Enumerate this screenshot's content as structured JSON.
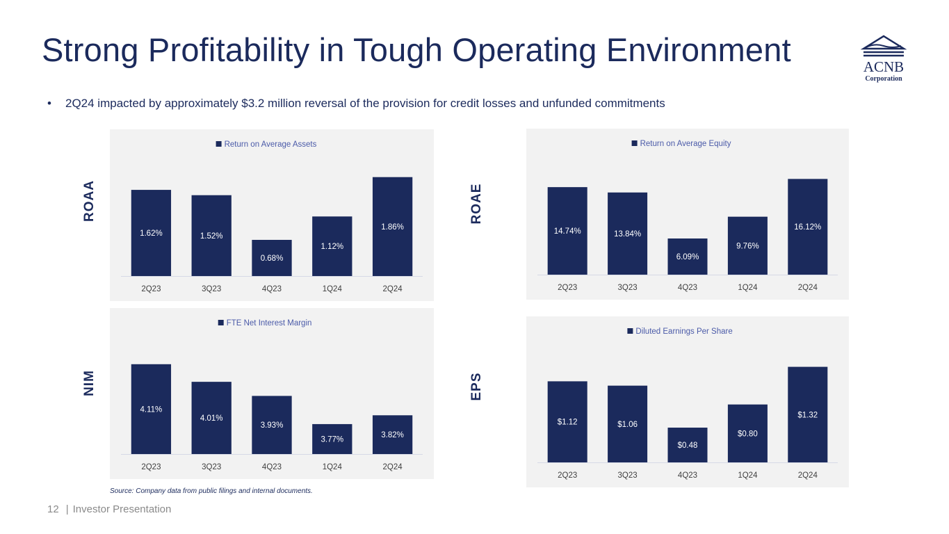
{
  "slide": {
    "title": "Strong Profitability in Tough Operating Environment",
    "bullet": "2Q24 impacted by approximately $3.2 million reversal of the provision for credit losses and unfunded commitments",
    "bullet_marker": "•",
    "source": "Source: Company data from public filings and internal documents.",
    "footer_page": "12",
    "footer_sep": "|",
    "footer_text": "Investor Presentation",
    "logo": {
      "name": "ACNB",
      "sub": "Corporation",
      "icon": "bank-roof-icon"
    },
    "colors": {
      "bar": "#1b2a5c",
      "legend_text": "#4a5aa8",
      "panel_bg": "#f2f2f2",
      "axis_text": "#404040"
    }
  },
  "chart_data": [
    {
      "id": "roaa",
      "type": "bar",
      "side_label": "ROAA",
      "title": "",
      "legend": [
        "Return on Average Assets"
      ],
      "legend_position": "top-center",
      "categories": [
        "2Q23",
        "3Q23",
        "4Q23",
        "1Q24",
        "2Q24"
      ],
      "values": [
        1.62,
        1.52,
        0.68,
        1.12,
        1.86
      ],
      "labels": [
        "1.62%",
        "1.52%",
        "0.68%",
        "1.12%",
        "1.86%"
      ],
      "xlabel": "",
      "ylabel": "",
      "ylim": [
        0,
        2.0
      ],
      "grid": false
    },
    {
      "id": "roae",
      "type": "bar",
      "side_label": "ROAE",
      "title": "",
      "legend": [
        "Return on Average Equity"
      ],
      "legend_position": "top-center",
      "categories": [
        "2Q23",
        "3Q23",
        "4Q23",
        "1Q24",
        "2Q24"
      ],
      "values": [
        14.74,
        13.84,
        6.09,
        9.76,
        16.12
      ],
      "labels": [
        "14.74%",
        "13.84%",
        "6.09%",
        "9.76%",
        "16.12%"
      ],
      "xlabel": "",
      "ylabel": "",
      "ylim": [
        0,
        17.8
      ],
      "grid": false
    },
    {
      "id": "nim",
      "type": "bar",
      "side_label": "NIM",
      "title": "",
      "legend": [
        "FTE Net Interest Margin"
      ],
      "legend_position": "top-center",
      "categories": [
        "2Q23",
        "3Q23",
        "4Q23",
        "1Q24",
        "2Q24"
      ],
      "values": [
        4.11,
        4.01,
        3.93,
        3.77,
        3.82
      ],
      "labels": [
        "4.11%",
        "4.01%",
        "3.93%",
        "3.77%",
        "3.82%"
      ],
      "xlabel": "",
      "ylabel": "",
      "ylim": [
        3.6,
        4.2
      ],
      "grid": false
    },
    {
      "id": "eps",
      "type": "bar",
      "side_label": "EPS",
      "title": "",
      "legend": [
        "Diluted Earnings Per Share"
      ],
      "legend_position": "top-center",
      "categories": [
        "2Q23",
        "3Q23",
        "4Q23",
        "1Q24",
        "2Q24"
      ],
      "values": [
        1.12,
        1.06,
        0.48,
        0.8,
        1.32
      ],
      "labels": [
        "$1.12",
        "$1.06",
        "$0.48",
        "$0.80",
        "$1.32"
      ],
      "xlabel": "",
      "ylabel": "",
      "ylim": [
        0,
        1.46
      ],
      "grid": false
    }
  ]
}
